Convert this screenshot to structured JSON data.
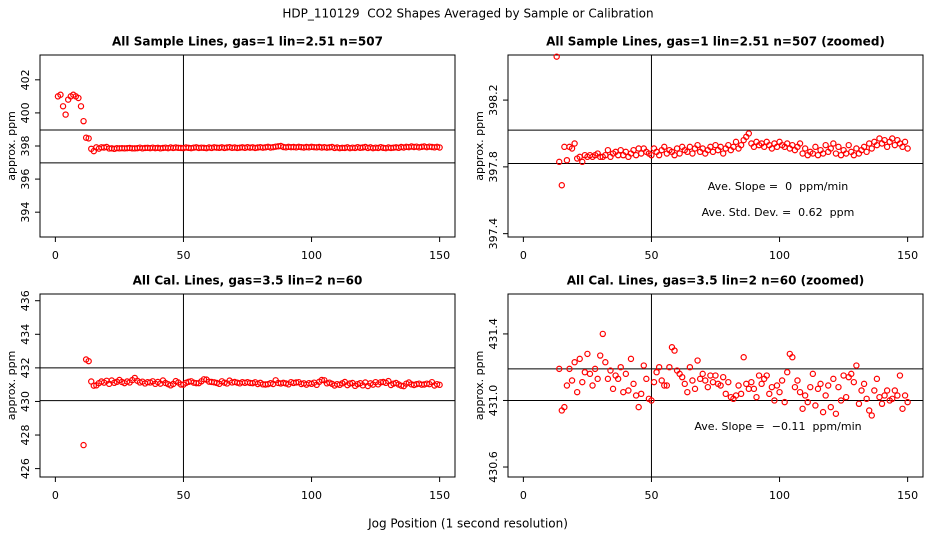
{
  "title": "HDP_110129  CO2 Shapes Averaged by Sample or Calibration",
  "x_label": "Jog Position (1 second resolution)",
  "chart_data": [
    {
      "type": "scatter",
      "title": "All Sample Lines, gas=1 lin=2.51 n=507",
      "y_label": "approx. ppm",
      "color": "#ff0000",
      "xlim": [
        -6,
        156
      ],
      "ylim": [
        392.5,
        403.5
      ],
      "xticks": [
        0,
        50,
        100,
        150
      ],
      "yticks": [
        394,
        396,
        398,
        400,
        402
      ],
      "vline": 50,
      "hlines": [
        398.97,
        396.98
      ],
      "x": [
        1,
        2,
        3,
        4,
        5,
        6,
        7,
        8,
        9,
        10,
        11,
        12,
        13,
        14,
        15,
        16,
        17,
        18,
        19,
        20,
        21,
        22,
        23,
        24,
        25,
        26,
        27,
        28,
        29,
        30,
        31,
        32,
        33,
        34,
        35,
        36,
        37,
        38,
        39,
        40,
        41,
        42,
        43,
        44,
        45,
        46,
        47,
        48,
        49,
        50,
        51,
        52,
        53,
        54,
        55,
        56,
        57,
        58,
        59,
        60,
        61,
        62,
        63,
        64,
        65,
        66,
        67,
        68,
        69,
        70,
        71,
        72,
        73,
        74,
        75,
        76,
        77,
        78,
        79,
        80,
        81,
        82,
        83,
        84,
        85,
        86,
        87,
        88,
        89,
        90,
        91,
        92,
        93,
        94,
        95,
        96,
        97,
        98,
        99,
        100,
        101,
        102,
        103,
        104,
        105,
        106,
        107,
        108,
        109,
        110,
        111,
        112,
        113,
        114,
        115,
        116,
        117,
        118,
        119,
        120,
        121,
        122,
        123,
        124,
        125,
        126,
        127,
        128,
        129,
        130,
        131,
        132,
        133,
        134,
        135,
        136,
        137,
        138,
        139,
        140,
        141,
        142,
        143,
        144,
        145,
        146,
        147,
        148,
        149,
        150
      ],
      "values": [
        401.0,
        401.1,
        400.4,
        399.9,
        400.8,
        401.0,
        401.1,
        401.0,
        400.9,
        400.4,
        399.5,
        398.5,
        398.46,
        397.83,
        397.69,
        397.92,
        397.84,
        397.92,
        397.91,
        397.94,
        397.85,
        397.86,
        397.83,
        397.87,
        397.86,
        397.87,
        397.86,
        397.87,
        397.88,
        397.86,
        397.86,
        397.87,
        397.9,
        397.86,
        397.88,
        397.89,
        397.87,
        397.9,
        397.87,
        397.89,
        397.86,
        397.88,
        397.9,
        397.87,
        397.91,
        397.88,
        397.91,
        397.89,
        397.88,
        397.87,
        397.91,
        397.89,
        397.87,
        397.9,
        397.92,
        397.88,
        397.9,
        397.89,
        397.87,
        397.91,
        397.88,
        397.92,
        397.9,
        397.89,
        397.92,
        397.88,
        397.91,
        397.93,
        397.89,
        397.91,
        397.88,
        397.9,
        397.92,
        397.89,
        397.93,
        397.9,
        397.92,
        397.88,
        397.91,
        397.93,
        397.9,
        397.92,
        397.95,
        397.91,
        397.93,
        397.96,
        397.98,
        398.0,
        397.94,
        397.92,
        397.95,
        397.93,
        397.94,
        397.92,
        397.95,
        397.93,
        397.91,
        397.94,
        397.92,
        397.95,
        397.93,
        397.92,
        397.94,
        397.91,
        397.93,
        397.9,
        397.92,
        397.94,
        397.88,
        397.91,
        397.87,
        397.89,
        397.88,
        397.92,
        397.87,
        397.9,
        397.88,
        397.93,
        397.89,
        397.91,
        397.94,
        397.88,
        397.92,
        397.87,
        397.9,
        397.88,
        397.93,
        397.89,
        397.87,
        397.91,
        397.88,
        397.9,
        397.92,
        397.89,
        397.94,
        397.91,
        397.95,
        397.93,
        397.97,
        397.94,
        397.96,
        397.92,
        397.95,
        397.97,
        397.93,
        397.96,
        397.94,
        397.92,
        397.95,
        397.91
      ]
    },
    {
      "type": "scatter",
      "title": "All Sample Lines, gas=1 lin=2.51 n=507 (zoomed)",
      "y_label": "approx. ppm",
      "color": "#ff0000",
      "xlim": [
        -6,
        156
      ],
      "ylim": [
        397.38,
        398.47
      ],
      "xticks": [
        0,
        50,
        100,
        150
      ],
      "yticks": [
        397.4,
        397.8,
        398.2
      ],
      "vline": 50,
      "hlines": [
        398.02,
        397.82
      ],
      "annotations": [
        "Ave. Slope =  0  ppm/min",
        "Ave. Std. Dev. =  0.62  ppm"
      ],
      "x": [
        13,
        14,
        15,
        16,
        17,
        18,
        19,
        20,
        21,
        22,
        23,
        24,
        25,
        26,
        27,
        28,
        29,
        30,
        31,
        32,
        33,
        34,
        35,
        36,
        37,
        38,
        39,
        40,
        41,
        42,
        43,
        44,
        45,
        46,
        47,
        48,
        49,
        50,
        51,
        52,
        53,
        54,
        55,
        56,
        57,
        58,
        59,
        60,
        61,
        62,
        63,
        64,
        65,
        66,
        67,
        68,
        69,
        70,
        71,
        72,
        73,
        74,
        75,
        76,
        77,
        78,
        79,
        80,
        81,
        82,
        83,
        84,
        85,
        86,
        87,
        88,
        89,
        90,
        91,
        92,
        93,
        94,
        95,
        96,
        97,
        98,
        99,
        100,
        101,
        102,
        103,
        104,
        105,
        106,
        107,
        108,
        109,
        110,
        111,
        112,
        113,
        114,
        115,
        116,
        117,
        118,
        119,
        120,
        121,
        122,
        123,
        124,
        125,
        126,
        127,
        128,
        129,
        130,
        131,
        132,
        133,
        134,
        135,
        136,
        137,
        138,
        139,
        140,
        141,
        142,
        143,
        144,
        145,
        146,
        147,
        148,
        149,
        150
      ],
      "values": [
        398.46,
        397.83,
        397.69,
        397.92,
        397.84,
        397.92,
        397.91,
        397.94,
        397.85,
        397.86,
        397.83,
        397.87,
        397.86,
        397.87,
        397.86,
        397.87,
        397.88,
        397.86,
        397.86,
        397.87,
        397.9,
        397.86,
        397.88,
        397.89,
        397.87,
        397.9,
        397.87,
        397.89,
        397.86,
        397.88,
        397.9,
        397.87,
        397.91,
        397.88,
        397.91,
        397.89,
        397.88,
        397.87,
        397.91,
        397.89,
        397.87,
        397.9,
        397.92,
        397.88,
        397.9,
        397.89,
        397.87,
        397.91,
        397.88,
        397.92,
        397.9,
        397.89,
        397.92,
        397.88,
        397.91,
        397.93,
        397.89,
        397.91,
        397.88,
        397.9,
        397.92,
        397.89,
        397.93,
        397.9,
        397.92,
        397.88,
        397.91,
        397.93,
        397.9,
        397.92,
        397.95,
        397.91,
        397.93,
        397.96,
        397.98,
        398.0,
        397.94,
        397.92,
        397.95,
        397.93,
        397.94,
        397.92,
        397.95,
        397.93,
        397.91,
        397.94,
        397.92,
        397.95,
        397.93,
        397.92,
        397.94,
        397.91,
        397.93,
        397.9,
        397.92,
        397.94,
        397.88,
        397.91,
        397.87,
        397.89,
        397.88,
        397.92,
        397.87,
        397.9,
        397.88,
        397.93,
        397.89,
        397.91,
        397.94,
        397.88,
        397.92,
        397.87,
        397.9,
        397.88,
        397.93,
        397.89,
        397.87,
        397.91,
        397.88,
        397.9,
        397.92,
        397.89,
        397.94,
        397.91,
        397.95,
        397.93,
        397.97,
        397.94,
        397.96,
        397.92,
        397.95,
        397.97,
        397.93,
        397.96,
        397.94,
        397.92,
        397.95,
        397.91
      ]
    },
    {
      "type": "scatter",
      "title": "All Cal. Lines, gas=3.5 lin=2 n=60",
      "y_label": "approx. ppm",
      "color": "#ff0000",
      "xlim": [
        -6,
        156
      ],
      "ylim": [
        425.5,
        436.4
      ],
      "xticks": [
        0,
        50,
        100,
        150
      ],
      "yticks": [
        426,
        428,
        430,
        432,
        434,
        436
      ],
      "vline": 50,
      "hlines": [
        432.0,
        430.05
      ],
      "x": [
        11,
        12,
        13,
        14,
        15,
        16,
        17,
        18,
        19,
        20,
        21,
        22,
        23,
        24,
        25,
        26,
        27,
        28,
        29,
        30,
        31,
        32,
        33,
        34,
        35,
        36,
        37,
        38,
        39,
        40,
        41,
        42,
        43,
        44,
        45,
        46,
        47,
        48,
        49,
        50,
        51,
        52,
        53,
        54,
        55,
        56,
        57,
        58,
        59,
        60,
        61,
        62,
        63,
        64,
        65,
        66,
        67,
        68,
        69,
        70,
        71,
        72,
        73,
        74,
        75,
        76,
        77,
        78,
        79,
        80,
        81,
        82,
        83,
        84,
        85,
        86,
        87,
        88,
        89,
        90,
        91,
        92,
        93,
        94,
        95,
        96,
        97,
        98,
        99,
        100,
        101,
        102,
        103,
        104,
        105,
        106,
        107,
        108,
        109,
        110,
        111,
        112,
        113,
        114,
        115,
        116,
        117,
        118,
        119,
        120,
        121,
        122,
        123,
        124,
        125,
        126,
        127,
        128,
        129,
        130,
        131,
        132,
        133,
        134,
        135,
        136,
        137,
        138,
        139,
        140,
        141,
        142,
        143,
        144,
        145,
        146,
        147,
        148,
        149,
        150
      ],
      "values": [
        427.4,
        432.5,
        432.4,
        431.19,
        430.94,
        430.96,
        431.09,
        431.19,
        431.12,
        431.23,
        431.05,
        431.25,
        431.11,
        431.17,
        431.28,
        431.16,
        431.09,
        431.19,
        431.13,
        431.27,
        431.4,
        431.23,
        431.13,
        431.18,
        431.07,
        431.15,
        431.13,
        431.2,
        431.05,
        431.16,
        431.06,
        431.25,
        431.1,
        431.03,
        430.96,
        431.04,
        431.21,
        431.13,
        431.01,
        431.0,
        431.11,
        431.17,
        431.2,
        431.12,
        431.09,
        431.09,
        431.2,
        431.32,
        431.3,
        431.18,
        431.16,
        431.14,
        431.1,
        431.05,
        431.2,
        431.12,
        431.07,
        431.24,
        431.13,
        431.16,
        431.12,
        431.08,
        431.15,
        431.11,
        431.15,
        431.1,
        431.09,
        431.14,
        431.04,
        431.11,
        431.02,
        431.01,
        431.03,
        431.09,
        431.04,
        431.26,
        431.1,
        431.07,
        431.11,
        431.07,
        431.02,
        431.15,
        431.1,
        431.13,
        431.15,
        431.04,
        431.08,
        431.0,
        431.09,
        431.05,
        431.12,
        430.99,
        431.17,
        431.28,
        431.26,
        431.08,
        431.12,
        431.05,
        430.95,
        431.03,
        430.99,
        431.08,
        431.16,
        430.97,
        431.07,
        431.1,
        430.93,
        431.03,
        431.09,
        430.96,
        431.13,
        430.92,
        431.08,
        431.0,
        431.15,
        431.02,
        431.14,
        431.16,
        431.11,
        431.21,
        430.98,
        431.06,
        431.1,
        431.01,
        430.94,
        430.91,
        431.06,
        431.13,
        431.02,
        430.98,
        431.03,
        431.06,
        431.0,
        431.01,
        431.06,
        431.03,
        431.15,
        430.95,
        431.03,
        430.99
      ]
    },
    {
      "type": "scatter",
      "title": "All Cal. Lines, gas=3.5 lin=2 n=60 (zoomed)",
      "y_label": "approx. ppm",
      "color": "#ff0000",
      "xlim": [
        -6,
        156
      ],
      "ylim": [
        430.54,
        431.64
      ],
      "xticks": [
        0,
        50,
        100,
        150
      ],
      "yticks": [
        430.6,
        {
          "value": 431,
          "label": "431.0"
        },
        431.4
      ],
      "vline": 50,
      "hlines": [
        431.19,
        431.0
      ],
      "annotations": [
        "Ave. Slope =  −0.11  ppm/min"
      ],
      "x": [
        14,
        15,
        16,
        17,
        18,
        19,
        20,
        21,
        22,
        23,
        24,
        25,
        26,
        27,
        28,
        29,
        30,
        31,
        32,
        33,
        34,
        35,
        36,
        37,
        38,
        39,
        40,
        41,
        42,
        43,
        44,
        45,
        46,
        47,
        48,
        49,
        50,
        51,
        52,
        53,
        54,
        55,
        56,
        57,
        58,
        59,
        60,
        61,
        62,
        63,
        64,
        65,
        66,
        67,
        68,
        69,
        70,
        71,
        72,
        73,
        74,
        75,
        76,
        77,
        78,
        79,
        80,
        81,
        82,
        83,
        84,
        85,
        86,
        87,
        88,
        89,
        90,
        91,
        92,
        93,
        94,
        95,
        96,
        97,
        98,
        99,
        100,
        101,
        102,
        103,
        104,
        105,
        106,
        107,
        108,
        109,
        110,
        111,
        112,
        113,
        114,
        115,
        116,
        117,
        118,
        119,
        120,
        121,
        122,
        123,
        124,
        125,
        126,
        127,
        128,
        129,
        130,
        131,
        132,
        133,
        134,
        135,
        136,
        137,
        138,
        139,
        140,
        141,
        142,
        143,
        144,
        145,
        146,
        147,
        148,
        149,
        150
      ],
      "values": [
        431.19,
        430.94,
        430.96,
        431.09,
        431.19,
        431.12,
        431.23,
        431.05,
        431.25,
        431.11,
        431.17,
        431.28,
        431.16,
        431.09,
        431.19,
        431.13,
        431.27,
        431.4,
        431.23,
        431.13,
        431.18,
        431.07,
        431.15,
        431.13,
        431.2,
        431.05,
        431.16,
        431.06,
        431.25,
        431.1,
        431.03,
        430.96,
        431.04,
        431.21,
        431.13,
        431.01,
        431.0,
        431.11,
        431.17,
        431.2,
        431.12,
        431.09,
        431.09,
        431.2,
        431.32,
        431.3,
        431.18,
        431.16,
        431.14,
        431.1,
        431.05,
        431.2,
        431.12,
        431.07,
        431.24,
        431.13,
        431.16,
        431.12,
        431.08,
        431.15,
        431.11,
        431.15,
        431.1,
        431.09,
        431.14,
        431.04,
        431.11,
        431.02,
        431.01,
        431.03,
        431.09,
        431.04,
        431.26,
        431.1,
        431.07,
        431.11,
        431.07,
        431.02,
        431.15,
        431.1,
        431.13,
        431.15,
        431.04,
        431.08,
        431.0,
        431.09,
        431.05,
        431.12,
        430.99,
        431.17,
        431.28,
        431.26,
        431.08,
        431.12,
        431.05,
        430.95,
        431.03,
        430.99,
        431.08,
        431.16,
        430.97,
        431.07,
        431.1,
        430.93,
        431.03,
        431.09,
        430.96,
        431.13,
        430.92,
        431.08,
        431.0,
        431.15,
        431.02,
        431.14,
        431.16,
        431.11,
        431.21,
        430.98,
        431.06,
        431.1,
        431.01,
        430.94,
        430.91,
        431.06,
        431.13,
        431.02,
        430.98,
        431.03,
        431.06,
        431.0,
        431.01,
        431.06,
        431.03,
        431.15,
        430.95,
        431.03,
        430.99
      ]
    }
  ]
}
